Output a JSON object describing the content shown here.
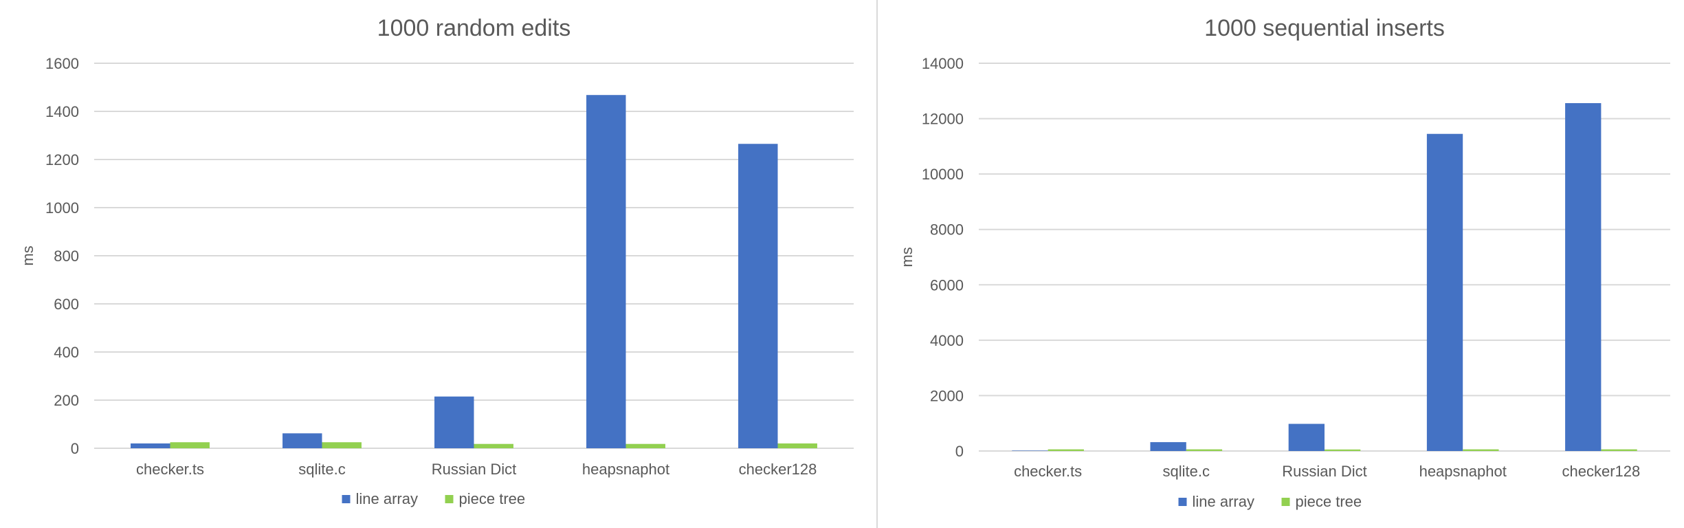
{
  "colors": {
    "line_array": "#4472c4",
    "piece_tree": "#92d050",
    "text": "#595959",
    "grid": "#d9d9d9"
  },
  "chart_data": [
    {
      "type": "bar",
      "title": "1000 random edits",
      "xlabel": "",
      "ylabel": "ms",
      "ylim": [
        0,
        1600
      ],
      "yticks": [
        "0",
        "200",
        "400",
        "600",
        "800",
        "1000",
        "1200",
        "1400",
        "1600"
      ],
      "grid": true,
      "legend_position": "bottom",
      "categories": [
        "checker.ts",
        "sqlite.c",
        "Russian Dict",
        "heapsnaphot",
        "checker128"
      ],
      "series": [
        {
          "name": "line array",
          "values": [
            20,
            62,
            215,
            1468,
            1265
          ]
        },
        {
          "name": "piece tree",
          "values": [
            25,
            25,
            18,
            18,
            20
          ]
        }
      ]
    },
    {
      "type": "bar",
      "title": "1000 sequential inserts",
      "xlabel": "",
      "ylabel": "ms",
      "ylim": [
        0,
        14000
      ],
      "yticks": [
        "0",
        "2000",
        "4000",
        "6000",
        "8000",
        "10000",
        "12000",
        "14000"
      ],
      "grid": true,
      "legend_position": "bottom",
      "categories": [
        "checker.ts",
        "sqlite.c",
        "Russian Dict",
        "heapsnaphot",
        "checker128"
      ],
      "series": [
        {
          "name": "line array",
          "values": [
            15,
            320,
            980,
            11450,
            12560
          ]
        },
        {
          "name": "piece tree",
          "values": [
            60,
            60,
            55,
            60,
            60
          ]
        }
      ]
    }
  ]
}
